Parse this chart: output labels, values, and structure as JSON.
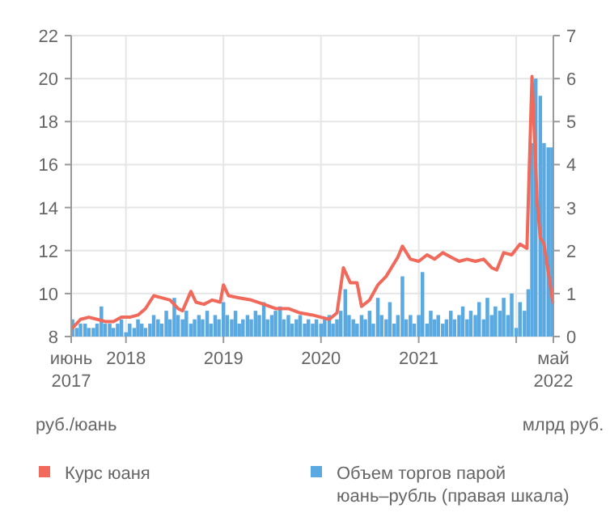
{
  "chart_data": {
    "type": "line",
    "xlabel": null,
    "ylabel": "руб./юань",
    "y2label": "млрд руб.",
    "xlim": [
      "2017-06-10",
      "2022-05-20"
    ],
    "xticks": [
      {
        "value": "2017-06-10",
        "label": "июнь\n2017"
      },
      {
        "value": "2018-01-01",
        "label": "2018"
      },
      {
        "value": "2019-01-01",
        "label": "2019"
      },
      {
        "value": "2020-01-01",
        "label": "2020"
      },
      {
        "value": "2021-01-01",
        "label": "2021"
      },
      {
        "value": "2022-01-01",
        "label": null
      },
      {
        "value": "2022-05-20",
        "label": "май\n2022"
      }
    ],
    "ylim": [
      8,
      22
    ],
    "yticks": [
      8,
      10,
      12,
      14,
      16,
      18,
      20,
      22
    ],
    "y2lim": [
      0,
      7
    ],
    "y2ticks": [
      0,
      1,
      2,
      3,
      4,
      5,
      6,
      7
    ],
    "grid": true,
    "legend": "bottom",
    "marker": "none",
    "line_style": "solid",
    "series": [
      {
        "name": "Объем торгов парой юань–рубль (правая шкала)",
        "type": "bar",
        "axis": "y2",
        "color": "#5aa9e0",
        "x": [
          "2017-06-15",
          "2017-07-01",
          "2017-07-15",
          "2017-08-01",
          "2017-08-15",
          "2017-09-01",
          "2017-09-15",
          "2017-10-01",
          "2017-10-15",
          "2017-11-01",
          "2017-11-15",
          "2017-12-01",
          "2017-12-15",
          "2018-01-01",
          "2018-01-15",
          "2018-02-01",
          "2018-02-15",
          "2018-03-01",
          "2018-03-15",
          "2018-04-01",
          "2018-04-15",
          "2018-05-01",
          "2018-05-15",
          "2018-06-01",
          "2018-06-15",
          "2018-07-01",
          "2018-07-15",
          "2018-08-01",
          "2018-08-15",
          "2018-09-01",
          "2018-09-15",
          "2018-10-01",
          "2018-10-15",
          "2018-11-01",
          "2018-11-15",
          "2018-12-01",
          "2018-12-15",
          "2019-01-01",
          "2019-01-15",
          "2019-02-01",
          "2019-02-15",
          "2019-03-01",
          "2019-03-15",
          "2019-04-01",
          "2019-04-15",
          "2019-05-01",
          "2019-05-15",
          "2019-06-01",
          "2019-06-15",
          "2019-07-01",
          "2019-07-15",
          "2019-08-01",
          "2019-08-15",
          "2019-09-01",
          "2019-09-15",
          "2019-10-01",
          "2019-10-15",
          "2019-11-01",
          "2019-11-15",
          "2019-12-01",
          "2019-12-15",
          "2020-01-01",
          "2020-01-15",
          "2020-02-01",
          "2020-02-15",
          "2020-03-01",
          "2020-03-15",
          "2020-04-01",
          "2020-04-15",
          "2020-05-01",
          "2020-05-15",
          "2020-06-01",
          "2020-06-15",
          "2020-07-01",
          "2020-07-15",
          "2020-08-01",
          "2020-08-15",
          "2020-09-01",
          "2020-09-15",
          "2020-10-01",
          "2020-10-15",
          "2020-11-01",
          "2020-11-15",
          "2020-12-01",
          "2020-12-15",
          "2021-01-01",
          "2021-01-15",
          "2021-02-01",
          "2021-02-15",
          "2021-03-01",
          "2021-03-15",
          "2021-04-01",
          "2021-04-15",
          "2021-05-01",
          "2021-05-15",
          "2021-06-01",
          "2021-06-15",
          "2021-07-01",
          "2021-07-15",
          "2021-08-01",
          "2021-08-15",
          "2021-09-01",
          "2021-09-15",
          "2021-10-01",
          "2021-10-15",
          "2021-11-01",
          "2021-11-15",
          "2021-12-01",
          "2021-12-15",
          "2022-01-01",
          "2022-01-15",
          "2022-02-01",
          "2022-02-15",
          "2022-03-01",
          "2022-03-15",
          "2022-04-01",
          "2022-04-15",
          "2022-05-01",
          "2022-05-15"
        ],
        "values": [
          0.4,
          0.2,
          0.3,
          0.3,
          0.2,
          0.2,
          0.3,
          0.7,
          0.3,
          0.3,
          0.2,
          0.3,
          0.4,
          0.1,
          0.3,
          0.2,
          0.4,
          0.3,
          0.2,
          0.3,
          0.5,
          0.4,
          0.3,
          0.6,
          0.4,
          0.9,
          0.5,
          0.4,
          0.6,
          0.3,
          0.4,
          0.5,
          0.4,
          0.6,
          0.3,
          0.5,
          0.4,
          0.8,
          0.5,
          0.4,
          0.6,
          0.3,
          0.4,
          0.5,
          0.4,
          0.6,
          0.5,
          0.8,
          0.4,
          0.5,
          0.6,
          0.7,
          0.4,
          0.5,
          0.3,
          0.4,
          0.5,
          0.3,
          0.4,
          0.3,
          0.4,
          0.3,
          0.4,
          0.5,
          0.3,
          0.4,
          0.6,
          1.1,
          0.5,
          0.4,
          0.3,
          0.5,
          0.4,
          0.6,
          0.3,
          0.9,
          0.5,
          0.4,
          0.8,
          0.3,
          0.5,
          1.4,
          0.4,
          0.5,
          0.3,
          0.5,
          1.5,
          0.3,
          0.6,
          0.4,
          0.5,
          0.3,
          0.4,
          0.6,
          0.4,
          0.5,
          0.7,
          0.4,
          0.6,
          0.5,
          0.8,
          0.4,
          0.9,
          0.5,
          0.7,
          0.6,
          0.9,
          0.5,
          1.0,
          0.2,
          0.8,
          0.6,
          1.1,
          4.5,
          6.0,
          5.6,
          4.5,
          4.4,
          4.4
        ]
      },
      {
        "name": "Курс юаня",
        "color": "#f0695a",
        "x": [
          "2017-06-15",
          "2017-07-15",
          "2017-08-15",
          "2017-09-15",
          "2017-10-15",
          "2017-11-15",
          "2017-12-15",
          "2018-01-15",
          "2018-02-15",
          "2018-03-15",
          "2018-04-15",
          "2018-05-15",
          "2018-06-15",
          "2018-07-15",
          "2018-08-01",
          "2018-09-01",
          "2018-09-20",
          "2018-10-20",
          "2018-11-20",
          "2018-12-20",
          "2019-01-01",
          "2019-01-20",
          "2019-03-01",
          "2019-04-15",
          "2019-06-01",
          "2019-07-15",
          "2019-09-01",
          "2019-10-15",
          "2019-12-01",
          "2020-01-01",
          "2020-02-01",
          "2020-03-01",
          "2020-03-25",
          "2020-04-20",
          "2020-05-15",
          "2020-06-01",
          "2020-07-01",
          "2020-08-01",
          "2020-09-01",
          "2020-10-15",
          "2020-11-01",
          "2020-12-01",
          "2021-01-01",
          "2021-02-01",
          "2021-03-01",
          "2021-04-01",
          "2021-05-01",
          "2021-06-01",
          "2021-07-01",
          "2021-08-01",
          "2021-09-01",
          "2021-10-01",
          "2021-10-20",
          "2021-11-15",
          "2021-12-15",
          "2022-01-15",
          "2022-02-10",
          "2022-03-01",
          "2022-03-20",
          "2022-04-01",
          "2022-04-15",
          "2022-05-18"
        ],
        "values": [
          8.4,
          8.8,
          8.9,
          8.8,
          8.7,
          8.7,
          8.9,
          8.9,
          9.0,
          9.3,
          9.9,
          9.8,
          9.7,
          9.3,
          9.2,
          10.1,
          9.6,
          9.5,
          9.7,
          9.6,
          10.4,
          9.9,
          9.8,
          9.7,
          9.5,
          9.3,
          9.3,
          9.1,
          9.0,
          8.9,
          8.8,
          9.1,
          11.2,
          10.5,
          10.5,
          9.4,
          9.7,
          10.4,
          10.8,
          11.7,
          12.2,
          11.6,
          11.5,
          11.8,
          11.6,
          11.9,
          11.7,
          11.5,
          11.6,
          11.5,
          11.6,
          11.2,
          11.1,
          11.9,
          11.8,
          12.3,
          12.1,
          20.1,
          14.3,
          12.6,
          12.3,
          9.6
        ]
      }
    ]
  }
}
